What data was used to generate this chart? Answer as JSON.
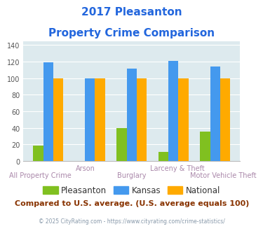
{
  "title_line1": "2017 Pleasanton",
  "title_line2": "Property Crime Comparison",
  "categories": [
    "All Property Crime",
    "Arson",
    "Burglary",
    "Larceny & Theft",
    "Motor Vehicle Theft"
  ],
  "pleasanton": [
    19,
    0,
    40,
    11,
    36
  ],
  "kansas": [
    119,
    100,
    112,
    121,
    114
  ],
  "national": [
    100,
    100,
    100,
    100,
    100
  ],
  "bar_colors": {
    "pleasanton": "#80c020",
    "kansas": "#4499ee",
    "national": "#ffaa00"
  },
  "ylim": [
    0,
    145
  ],
  "yticks": [
    0,
    20,
    40,
    60,
    80,
    100,
    120,
    140
  ],
  "top_xlabels": [
    "",
    "Arson",
    "",
    "Larceny & Theft",
    ""
  ],
  "bot_xlabels": [
    "All Property Crime",
    "",
    "Burglary",
    "",
    "Motor Vehicle Theft"
  ],
  "xlabel_color": "#aa88aa",
  "title_color": "#2266dd",
  "bg_color": "#ddeaee",
  "note_text": "Compared to U.S. average. (U.S. average equals 100)",
  "note_color": "#883300",
  "footer_text": "© 2025 CityRating.com - https://www.cityrating.com/crime-statistics/",
  "footer_color": "#8899aa",
  "legend_labels": [
    "Pleasanton",
    "Kansas",
    "National"
  ]
}
